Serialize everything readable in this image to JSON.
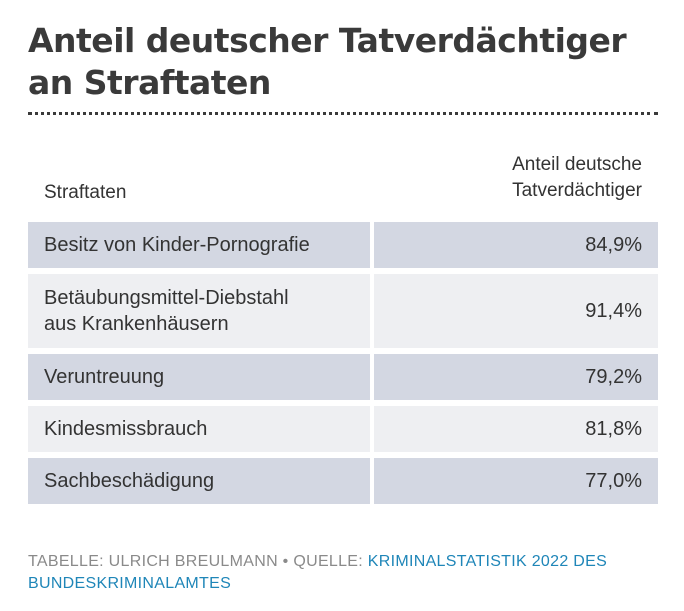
{
  "chart_data": {
    "type": "table",
    "title": "Anteil deutscher Tatverdächtiger an Straftaten",
    "columns": [
      "Straftaten",
      "Anteil deutsche Tatverdächtiger"
    ],
    "column_header_lines": [
      "Anteil deutsche",
      "Tatverdächtiger"
    ],
    "rows": [
      {
        "name_lines": [
          "Besitz von Kinder-Pornografie"
        ],
        "value": "84,9%"
      },
      {
        "name_lines": [
          "Betäubungsmittel-Diebstahl",
          "aus Krankenhäusern"
        ],
        "value": "91,4%"
      },
      {
        "name_lines": [
          "Veruntreuung"
        ],
        "value": "79,2%"
      },
      {
        "name_lines": [
          "Kindesmissbrauch"
        ],
        "value": "81,8%"
      },
      {
        "name_lines": [
          "Sachbeschädigung"
        ],
        "value": "77,0%"
      }
    ],
    "values": [
      84.9,
      91.4,
      79.2,
      81.8,
      77.0
    ]
  },
  "footer": {
    "credit": "TABELLE: ULRICH BREULMANN",
    "separator": " • ",
    "source_label": "QUELLE: ",
    "source_link": "KRIMINALSTATISTIK 2022 DES BUNDESKRIMINALAMTES"
  },
  "colors": {
    "row_dark": "#d3d7e2",
    "row_light": "#eeeff2",
    "text": "#333333",
    "footer_text": "#8a8a8a",
    "link": "#1f86b8"
  }
}
